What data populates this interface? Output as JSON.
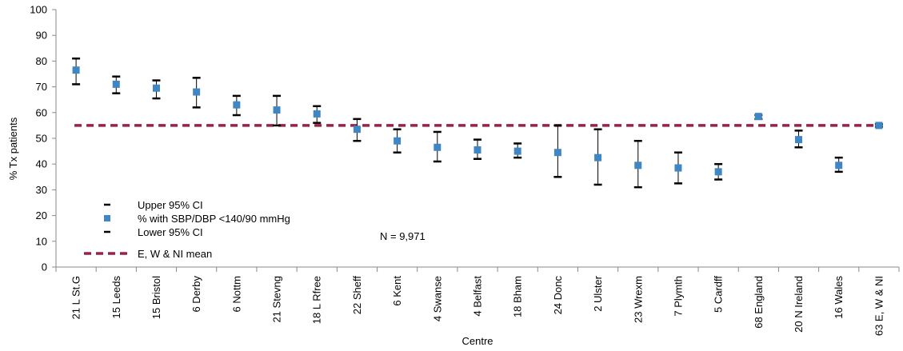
{
  "chart_data": {
    "type": "scatter",
    "xlabel": "Centre",
    "ylabel": "% Tx patients",
    "ylim": [
      0,
      100
    ],
    "yticks": [
      0,
      10,
      20,
      30,
      40,
      50,
      60,
      70,
      80,
      90,
      100
    ],
    "grid": false,
    "legend_position": "bottom-left",
    "annotation": "N = 9,971",
    "categories": [
      "21 L St.G",
      "15 Leeds",
      "15 Bristol",
      "6 Derby",
      "6 Nottm",
      "21 Stevng",
      "18 L Rfree",
      "22 Sheff",
      "6 Kent",
      "4 Swanse",
      "4 Belfast",
      "18 Bham",
      "24 Donc",
      "2 Ulster",
      "23 Wrexm",
      "7 Plymth",
      "5 Cardff",
      "68 England",
      "20 N Ireland",
      "16 Wales",
      "63 E, W & NI"
    ],
    "series": [
      {
        "name": "Upper 95% CI",
        "values": [
          81,
          74,
          72.5,
          73.5,
          66.5,
          66.5,
          62.5,
          57.5,
          53.5,
          52.5,
          49.5,
          48,
          55,
          53.5,
          49,
          44.5,
          40,
          59,
          53,
          42.5,
          55.5
        ]
      },
      {
        "name": "% with SBP/DBP <140/90 mmHg",
        "values": [
          76.5,
          71,
          69.5,
          68,
          63,
          61,
          59.5,
          53.5,
          49,
          46.5,
          45.5,
          45,
          44.5,
          42.5,
          39.5,
          38.5,
          37,
          58.5,
          49.5,
          39.5,
          55
        ]
      },
      {
        "name": "Lower 95% CI",
        "values": [
          71,
          67.5,
          65.5,
          62,
          59,
          55,
          56,
          49,
          44.5,
          41,
          42,
          42.5,
          35,
          32,
          31,
          32.5,
          34,
          57.5,
          46.5,
          37,
          54.5
        ]
      },
      {
        "name": "E, W & NI mean",
        "value": 55
      }
    ],
    "colors": {
      "marker": "#3f86c4",
      "mean": "#9b2047",
      "ci": "#000000"
    }
  }
}
